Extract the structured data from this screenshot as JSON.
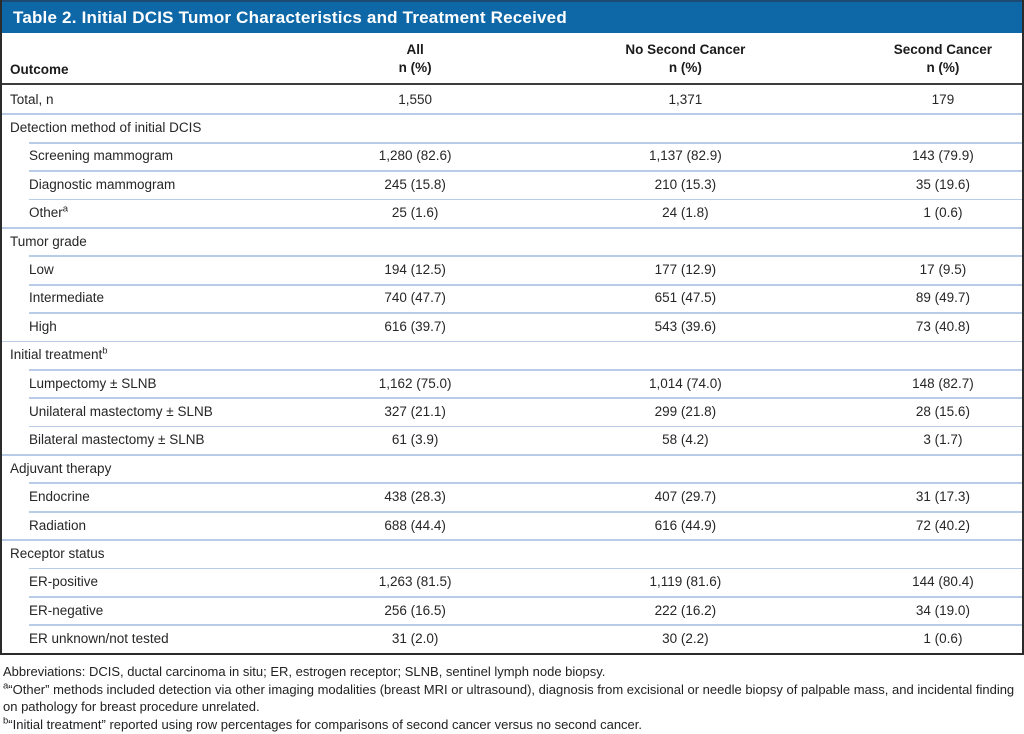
{
  "title": "Table 2. Initial DCIS Tumor Characteristics and Treatment Received",
  "columns": {
    "outcome": "Outcome",
    "all": "All",
    "no_second": "No Second Cancer",
    "second": "Second Cancer",
    "n_pct": "n (%)"
  },
  "rows": [
    {
      "type": "total",
      "divider": "none",
      "label": "Total, n",
      "sup": "",
      "all": "1,550",
      "no_second": "1,371",
      "second": "179"
    },
    {
      "type": "section",
      "divider": "full",
      "label": "Detection method of initial DCIS",
      "sup": ""
    },
    {
      "type": "sub",
      "divider": "indent",
      "label": "Screening mammogram",
      "sup": "",
      "all": "1,280 (82.6)",
      "no_second": "1,137 (82.9)",
      "second": "143 (79.9)"
    },
    {
      "type": "sub",
      "divider": "indent",
      "label": "Diagnostic mammogram",
      "sup": "",
      "all": "245 (15.8)",
      "no_second": "210 (15.3)",
      "second": "35 (19.6)"
    },
    {
      "type": "sub",
      "divider": "indent",
      "label": "Other",
      "sup": "a",
      "all": "25 (1.6)",
      "no_second": "24 (1.8)",
      "second": "1 (0.6)"
    },
    {
      "type": "section",
      "divider": "full",
      "label": "Tumor grade",
      "sup": ""
    },
    {
      "type": "sub",
      "divider": "indent",
      "label": "Low",
      "sup": "",
      "all": "194 (12.5)",
      "no_second": "177 (12.9)",
      "second": "17 (9.5)"
    },
    {
      "type": "sub",
      "divider": "indent",
      "label": "Intermediate",
      "sup": "",
      "all": "740 (47.7)",
      "no_second": "651 (47.5)",
      "second": "89 (49.7)"
    },
    {
      "type": "sub",
      "divider": "indent",
      "label": "High",
      "sup": "",
      "all": "616 (39.7)",
      "no_second": "543 (39.6)",
      "second": "73 (40.8)"
    },
    {
      "type": "section",
      "divider": "full",
      "label": "Initial treatment",
      "sup": "b"
    },
    {
      "type": "sub",
      "divider": "indent",
      "label": "Lumpectomy ± SLNB",
      "sup": "",
      "all": "1,162 (75.0)",
      "no_second": "1,014 (74.0)",
      "second": "148 (82.7)"
    },
    {
      "type": "sub",
      "divider": "indent",
      "label": "Unilateral mastectomy ± SLNB",
      "sup": "",
      "all": "327 (21.1)",
      "no_second": "299 (21.8)",
      "second": "28 (15.6)"
    },
    {
      "type": "sub",
      "divider": "indent",
      "label": "Bilateral mastectomy ± SLNB",
      "sup": "",
      "all": "61 (3.9)",
      "no_second": "58 (4.2)",
      "second": "3 (1.7)"
    },
    {
      "type": "section",
      "divider": "full",
      "label": "Adjuvant therapy",
      "sup": ""
    },
    {
      "type": "sub",
      "divider": "indent",
      "label": "Endocrine",
      "sup": "",
      "all": "438 (28.3)",
      "no_second": "407 (29.7)",
      "second": "31 (17.3)"
    },
    {
      "type": "sub",
      "divider": "indent",
      "label": "Radiation",
      "sup": "",
      "all": "688 (44.4)",
      "no_second": "616 (44.9)",
      "second": "72 (40.2)"
    },
    {
      "type": "section",
      "divider": "full",
      "label": "Receptor status",
      "sup": ""
    },
    {
      "type": "sub",
      "divider": "indent",
      "label": "ER-positive",
      "sup": "",
      "all": "1,263 (81.5)",
      "no_second": "1,119 (81.6)",
      "second": "144 (80.4)"
    },
    {
      "type": "sub",
      "divider": "indent",
      "label": "ER-negative",
      "sup": "",
      "all": "256 (16.5)",
      "no_second": "222 (16.2)",
      "second": "34 (19.0)"
    },
    {
      "type": "sub",
      "divider": "indent",
      "label": "ER unknown/not tested",
      "sup": "",
      "all": "31 (2.0)",
      "no_second": "30 (2.2)",
      "second": "1 (0.6)"
    }
  ],
  "footnotes": [
    {
      "sup": "",
      "text": "Abbreviations: DCIS, ductal carcinoma in situ; ER, estrogen receptor; SLNB, sentinel lymph node biopsy."
    },
    {
      "sup": "a",
      "text": "“Other” methods included detection via other imaging modalities (breast MRI or ultrasound), diagnosis from excisional or needle biopsy of palpable mass, and incidental finding on pathology for breast procedure unrelated."
    },
    {
      "sup": "b",
      "text": "“Initial treatment” reported using row percentages for comparisons of second cancer versus no second cancer."
    }
  ],
  "colors": {
    "header_blue": "#0e68a8",
    "divider_blue": "#b9cbe6",
    "border_dark": "#2b2b2b"
  }
}
